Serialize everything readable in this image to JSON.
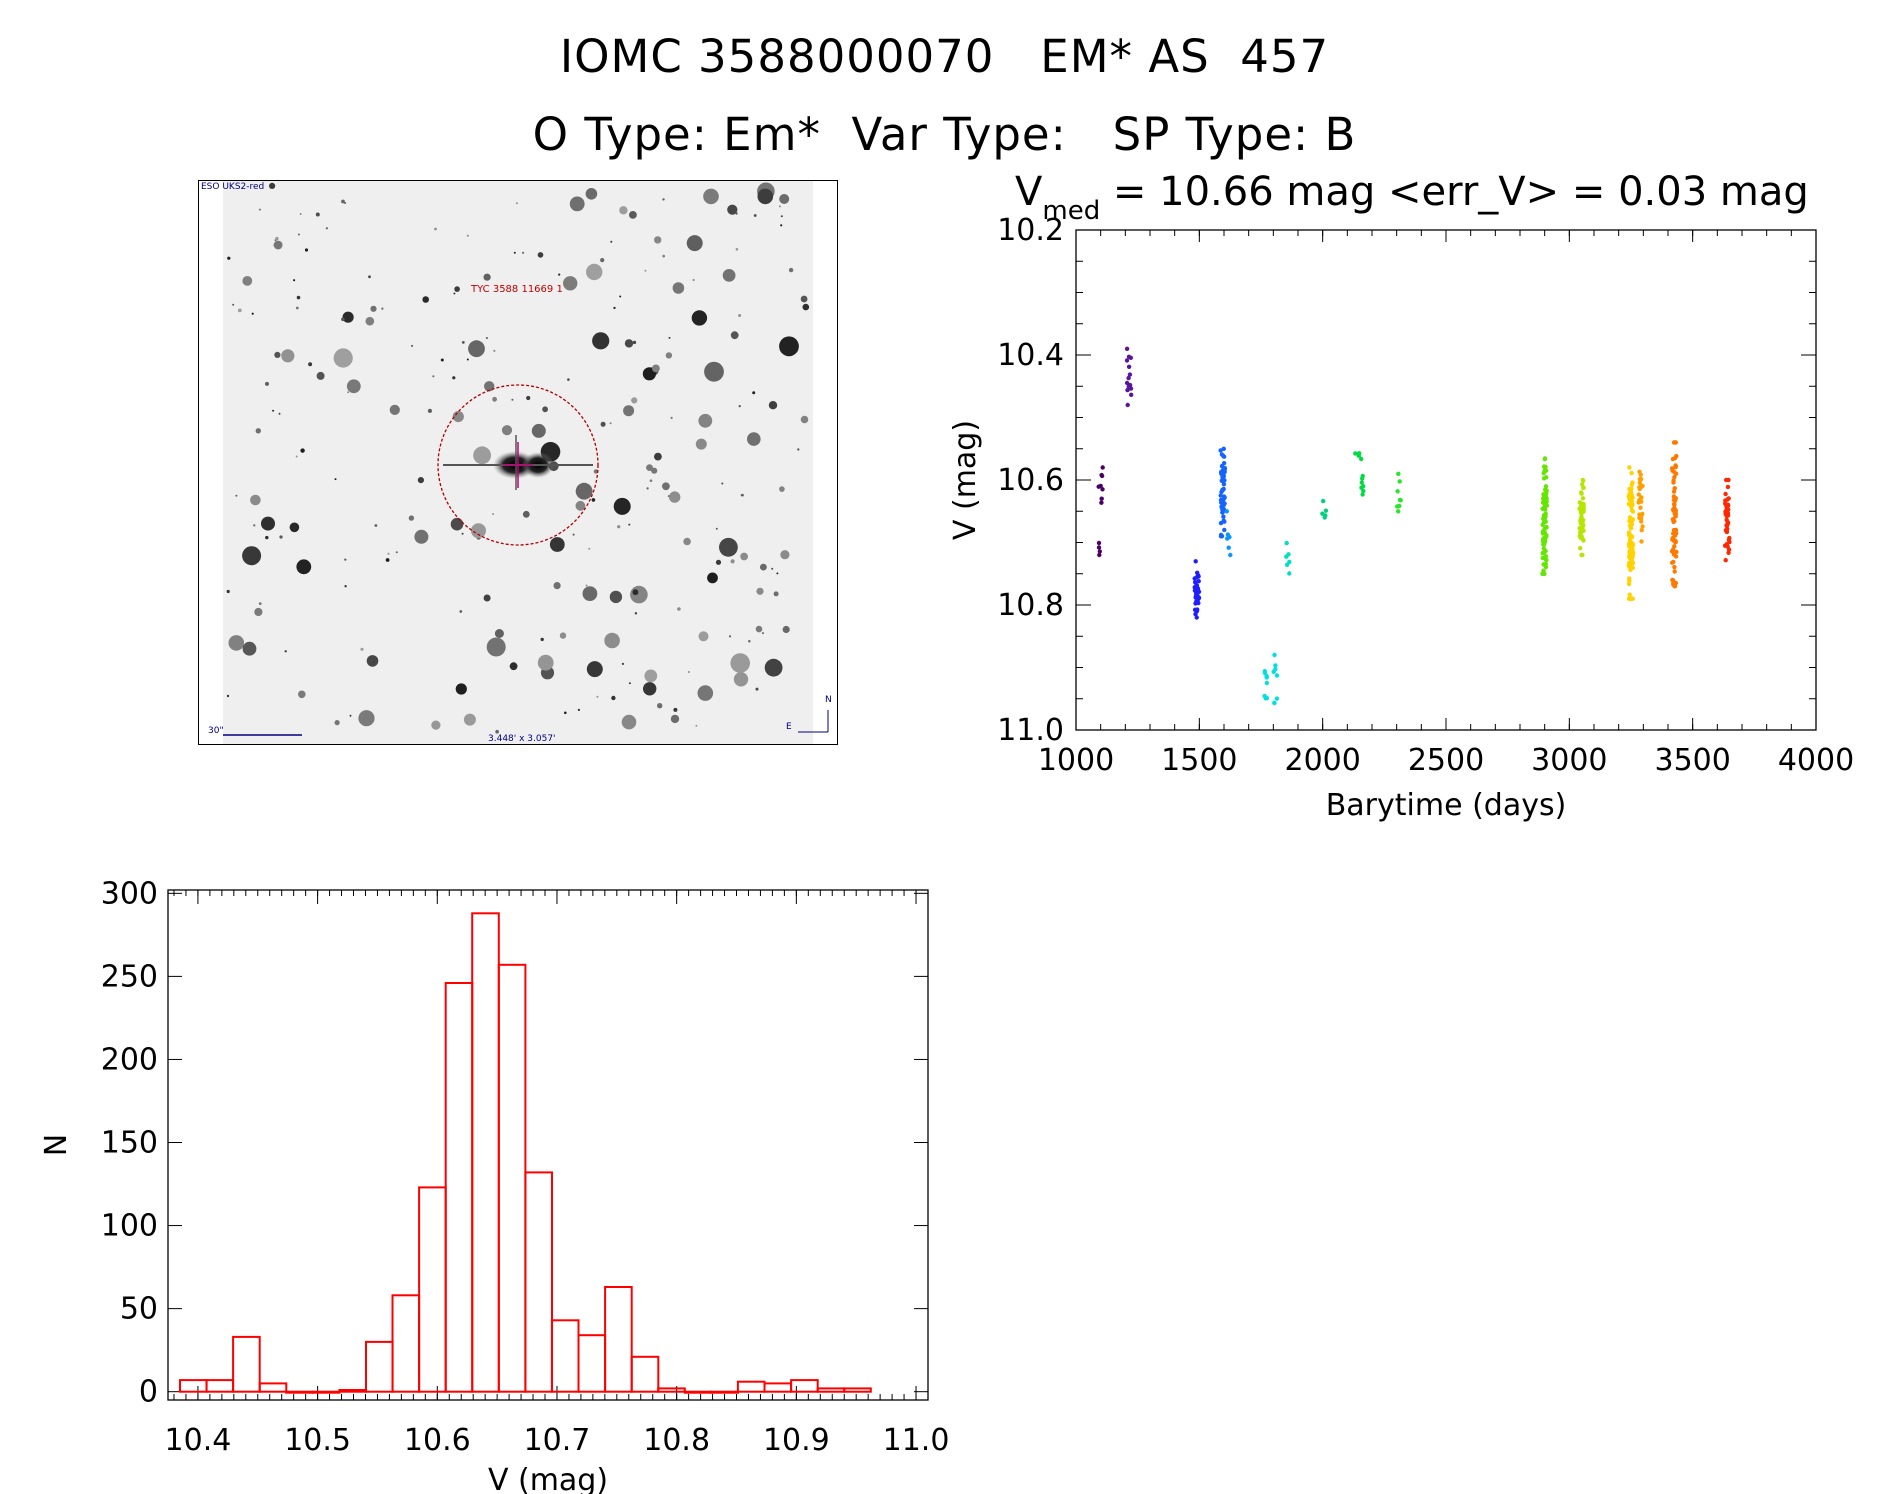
{
  "header": {
    "line1": "IOMC 3588000070   EM* AS  457",
    "line2": "O Type: Em*  Var Type:   SP Type: B"
  },
  "image_panel": {
    "survey_label": "ESO UKS2-red",
    "target_label": "TYC 3588 11669 1",
    "scale_label": "30\"",
    "size_label": "3.448' x 3.057'",
    "north_label": "N",
    "east_label": "E"
  },
  "chart_data": [
    {
      "type": "scatter",
      "title_main": "V",
      "title_sub": "med",
      "title_rest": " = 10.66 mag <err_V> = 0.03 mag",
      "xlabel": "Barytime (days)",
      "ylabel": "V (mag)",
      "xlim": [
        1000,
        4000
      ],
      "ylim": [
        11.0,
        10.2
      ],
      "y_inverted": true,
      "xticks": [
        1000,
        1500,
        2000,
        2500,
        3000,
        3500,
        4000
      ],
      "yticks": [
        10.2,
        10.4,
        10.6,
        10.8,
        11.0
      ],
      "ytick_labels": [
        "10.2",
        "10.4",
        "10.6",
        "10.8",
        "11.0"
      ],
      "groups": [
        {
          "x": 1100,
          "ymin": 10.58,
          "ymax": 10.64,
          "n": 8,
          "color": "#4b0066"
        },
        {
          "x": 1090,
          "ymin": 10.68,
          "ymax": 10.72,
          "n": 4,
          "color": "#4b0066"
        },
        {
          "x": 1215,
          "ymin": 10.39,
          "ymax": 10.48,
          "n": 14,
          "color": "#5a14a0"
        },
        {
          "x": 1490,
          "ymin": 10.73,
          "ymax": 10.82,
          "n": 40,
          "color": "#1e1eff"
        },
        {
          "x": 1595,
          "ymin": 10.55,
          "ymax": 10.69,
          "n": 50,
          "color": "#1464ff"
        },
        {
          "x": 1620,
          "ymin": 10.65,
          "ymax": 10.72,
          "n": 6,
          "color": "#0a96ff"
        },
        {
          "x": 1770,
          "ymin": 10.89,
          "ymax": 10.97,
          "n": 8,
          "color": "#00e0e0"
        },
        {
          "x": 1810,
          "ymin": 10.88,
          "ymax": 10.98,
          "n": 8,
          "color": "#00e0e0"
        },
        {
          "x": 1860,
          "ymin": 10.68,
          "ymax": 10.76,
          "n": 6,
          "color": "#00e0c0"
        },
        {
          "x": 2005,
          "ymin": 10.62,
          "ymax": 10.66,
          "n": 5,
          "color": "#00d080"
        },
        {
          "x": 2140,
          "ymin": 10.55,
          "ymax": 10.57,
          "n": 4,
          "color": "#00dc40"
        },
        {
          "x": 2165,
          "ymin": 10.56,
          "ymax": 10.64,
          "n": 8,
          "color": "#00dc40"
        },
        {
          "x": 2310,
          "ymin": 10.59,
          "ymax": 10.65,
          "n": 8,
          "color": "#28e628"
        },
        {
          "x": 2900,
          "ymin": 10.56,
          "ymax": 10.75,
          "n": 80,
          "color": "#64e600"
        },
        {
          "x": 3050,
          "ymin": 10.6,
          "ymax": 10.72,
          "n": 50,
          "color": "#b4e600"
        },
        {
          "x": 3250,
          "ymin": 10.58,
          "ymax": 10.79,
          "n": 80,
          "color": "#ffd200"
        },
        {
          "x": 3290,
          "ymin": 10.58,
          "ymax": 10.7,
          "n": 30,
          "color": "#ffa000"
        },
        {
          "x": 3425,
          "ymin": 10.54,
          "ymax": 10.77,
          "n": 70,
          "color": "#ff7800"
        },
        {
          "x": 3640,
          "ymin": 10.6,
          "ymax": 10.73,
          "n": 40,
          "color": "#ff2800"
        }
      ]
    },
    {
      "type": "bar",
      "subtype": "histogram",
      "xlabel": "V (mag)",
      "ylabel": "N",
      "xlim": [
        10.375,
        11.01
      ],
      "ylim": [
        -5,
        302
      ],
      "xticks": [
        10.4,
        10.5,
        10.6,
        10.7,
        10.8,
        10.9,
        11.0
      ],
      "xtick_labels": [
        "10.4",
        "10.5",
        "10.6",
        "10.7",
        "10.8",
        "10.9",
        "11.0"
      ],
      "yticks": [
        0,
        50,
        100,
        150,
        200,
        250,
        300
      ],
      "bin_width": 0.0222,
      "bin_start": 10.385,
      "values": [
        7,
        7,
        33,
        5,
        0,
        0,
        1,
        30,
        58,
        123,
        246,
        288,
        257,
        132,
        43,
        34,
        63,
        21,
        2,
        0,
        0,
        6,
        5,
        7,
        2,
        2
      ],
      "color": "#ff0000"
    }
  ]
}
